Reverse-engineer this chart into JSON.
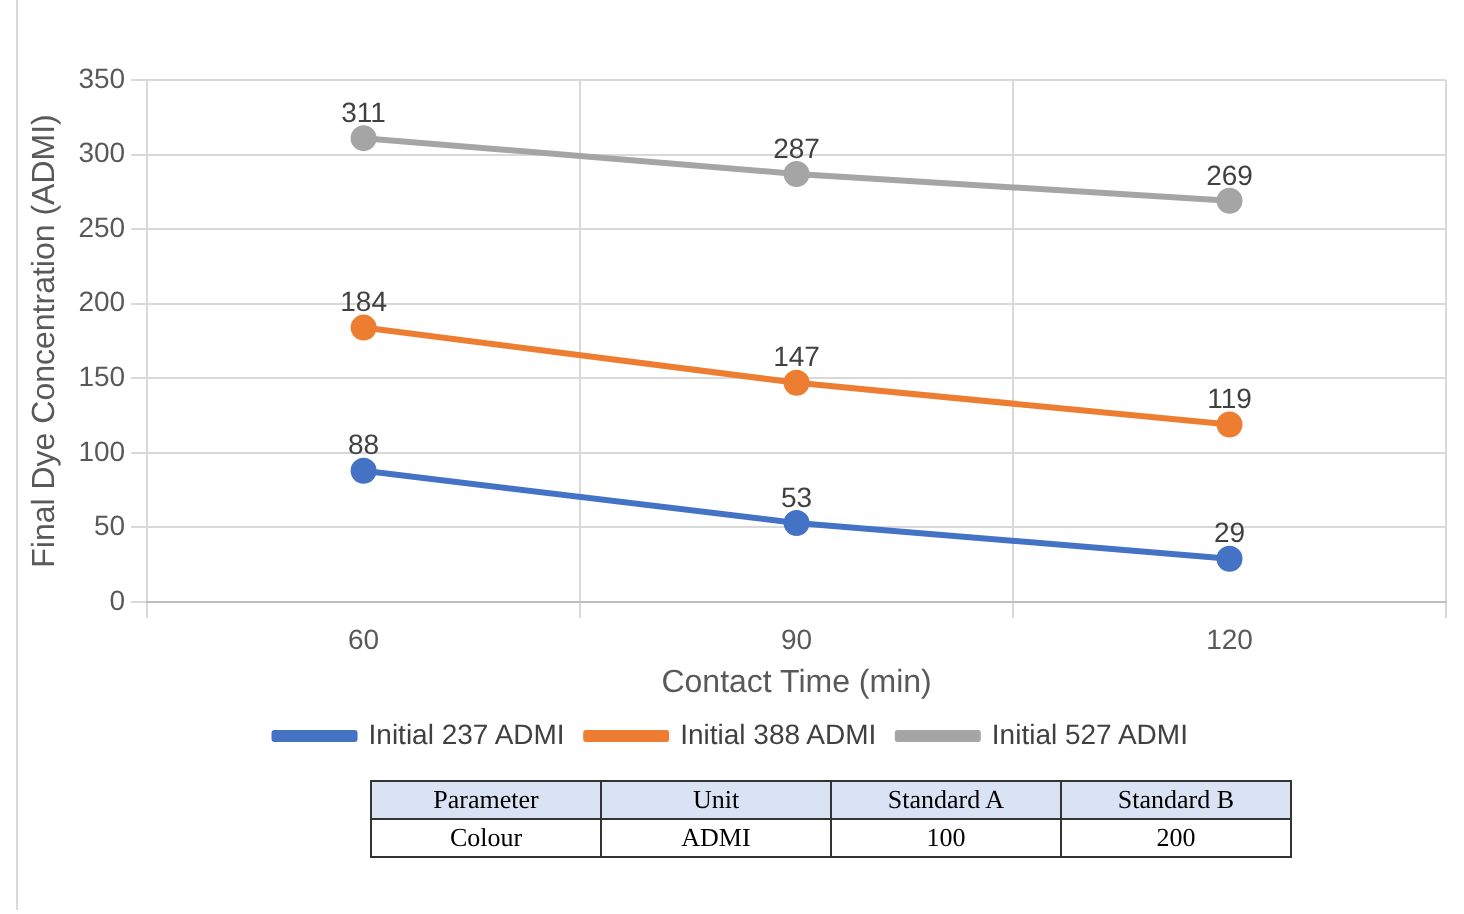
{
  "chart_data": {
    "type": "line",
    "xlabel": "Contact Time (min)",
    "ylabel": "Final Dye Concentration (ADMI)",
    "categories": [
      "60",
      "90",
      "120"
    ],
    "series": [
      {
        "name": "Initial 237 ADMI",
        "color": "#4472c4",
        "values": [
          88,
          53,
          29
        ]
      },
      {
        "name": "Initial 388 ADMI",
        "color": "#ed7d31",
        "values": [
          184,
          147,
          119
        ]
      },
      {
        "name": "Initial 527 ADMI",
        "color": "#a5a5a5",
        "values": [
          311,
          287,
          269
        ]
      }
    ],
    "ylim": [
      0,
      350
    ],
    "yticks": [
      0,
      50,
      100,
      150,
      200,
      250,
      300,
      350
    ],
    "grid": true,
    "legend": "bottom",
    "marker": "circle",
    "line_style": "solid",
    "data_labels": true,
    "annotations": [
      "Parameter",
      "Unit",
      "Standard A",
      "Standard B",
      "Colour",
      "ADMI",
      "100",
      "200"
    ]
  }
}
